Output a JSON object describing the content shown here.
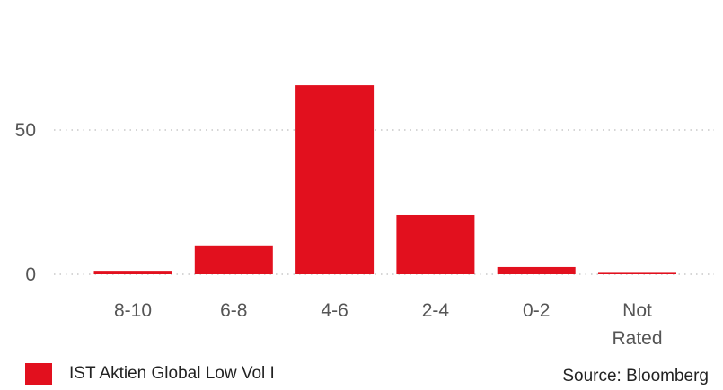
{
  "chart_data": {
    "type": "bar",
    "categories": [
      "8-10",
      "6-8",
      "4-6",
      "2-4",
      "0-2",
      "Not Rated"
    ],
    "series": [
      {
        "name": "IST Aktien Global Low Vol I",
        "values": [
          1.2,
          10,
          65.5,
          20.5,
          2.5,
          0.8
        ]
      }
    ],
    "ylim": [
      0,
      75
    ],
    "yticks": [
      0,
      50
    ],
    "grid": "horizontal dotted",
    "legend_position": "bottom-left",
    "bar_color": "#E2101E"
  },
  "source": "Source: Bloomberg"
}
